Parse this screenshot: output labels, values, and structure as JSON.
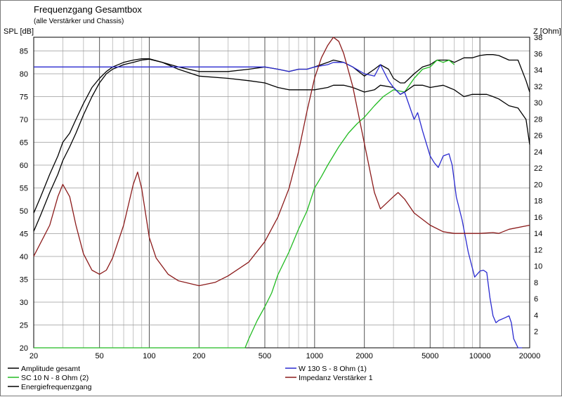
{
  "chart_data": {
    "type": "line",
    "title": "Frequenzgang Gesamtbox",
    "subtitle": "(alle Verstärker und Chassis)",
    "ylabel": "SPL [dB]",
    "y2label": "Z [Ohm]",
    "x_scale": "log",
    "xlim": [
      20,
      20000
    ],
    "ylim": [
      20,
      88
    ],
    "y2lim": [
      0,
      38
    ],
    "x_ticks": [
      20,
      50,
      100,
      200,
      500,
      1000,
      2000,
      5000,
      10000,
      20000
    ],
    "y_ticks": [
      20,
      25,
      30,
      35,
      40,
      45,
      50,
      55,
      60,
      65,
      70,
      75,
      80,
      85
    ],
    "y2_ticks": [
      2,
      4,
      6,
      8,
      10,
      12,
      14,
      16,
      18,
      20,
      22,
      24,
      26,
      28,
      30,
      32,
      34,
      36,
      38
    ],
    "grid": true,
    "legend_position": "bottom",
    "series": [
      {
        "name": "Amplitude gesamt",
        "axis": "left",
        "color": "#000000",
        "x": [
          20,
          22,
          25,
          28,
          30,
          33,
          36,
          40,
          45,
          50,
          55,
          60,
          70,
          80,
          90,
          100,
          120,
          150,
          200,
          300,
          400,
          500,
          600,
          700,
          800,
          900,
          1000,
          1200,
          1300,
          1500,
          1700,
          2000,
          2300,
          2500,
          2800,
          3000,
          3300,
          3500,
          4000,
          4500,
          5000,
          5500,
          6000,
          6500,
          7000,
          8000,
          9000,
          10000,
          11000,
          12000,
          13000,
          15000,
          17000,
          19000,
          20000
        ],
        "y": [
          49.5,
          53,
          58,
          62,
          65,
          67,
          70,
          73.5,
          77,
          79,
          80.5,
          81.5,
          82.5,
          83,
          83.3,
          83.3,
          82.5,
          81.5,
          80.5,
          80.5,
          81,
          81.5,
          81,
          80.5,
          81,
          81,
          81.5,
          82.5,
          83,
          82.5,
          81.5,
          79.5,
          81,
          82,
          81,
          79,
          78,
          78,
          80,
          81.5,
          82,
          83,
          83,
          83,
          82.5,
          83.5,
          83.5,
          84,
          84.2,
          84.2,
          84,
          83,
          83,
          78.5,
          76
        ]
      },
      {
        "name": "SC 10 N - 8 Ohm (2)",
        "axis": "left",
        "color": "#22bb22",
        "x": [
          20,
          100,
          300,
          380,
          400,
          450,
          500,
          550,
          600,
          700,
          800,
          900,
          1000,
          1100,
          1200,
          1400,
          1600,
          1800,
          2000,
          2300,
          2600,
          3000,
          3500,
          4000,
          4500,
          5000,
          5500,
          6000,
          6500,
          7000
        ],
        "y": [
          20,
          20,
          20,
          20,
          22,
          26,
          29,
          32,
          36,
          41,
          46,
          50,
          55,
          57.5,
          60,
          64,
          67,
          69,
          70.5,
          73,
          75,
          76.5,
          76,
          79,
          81,
          81.5,
          83,
          82.5,
          83,
          82
        ]
      },
      {
        "name": "Energiefrequenzgang",
        "axis": "left",
        "color": "#000000",
        "x": [
          20,
          22,
          25,
          28,
          30,
          33,
          36,
          40,
          45,
          50,
          55,
          60,
          70,
          80,
          90,
          100,
          120,
          150,
          200,
          300,
          400,
          500,
          600,
          700,
          800,
          1000,
          1200,
          1300,
          1500,
          1700,
          2000,
          2300,
          2500,
          3000,
          3300,
          3500,
          4000,
          4500,
          5000,
          6000,
          7000,
          8000,
          9000,
          10000,
          11000,
          12000,
          13000,
          15000,
          17000,
          19000,
          20000
        ],
        "y": [
          45.5,
          49,
          54,
          58,
          61,
          64,
          67,
          71,
          75,
          78,
          80,
          81,
          82,
          82.5,
          83,
          83.2,
          82.5,
          81,
          79.5,
          79,
          78.5,
          78,
          77,
          76.5,
          76.5,
          76.5,
          77,
          77.5,
          77.5,
          77,
          76,
          76.5,
          77.5,
          77,
          75.5,
          76,
          77.5,
          77.5,
          77,
          77.5,
          76.5,
          75,
          75.5,
          75.5,
          75.5,
          75,
          74.5,
          73,
          72.5,
          70,
          64.5
        ]
      },
      {
        "name": "W 130 S - 8 Ohm (1)",
        "axis": "left",
        "color": "#2a2ad0",
        "x": [
          20,
          100,
          300,
          500,
          600,
          700,
          800,
          900,
          1000,
          1200,
          1300,
          1500,
          1700,
          2000,
          2300,
          2500,
          2800,
          3000,
          3300,
          3500,
          4000,
          4200,
          4500,
          5000,
          5300,
          5600,
          6000,
          6500,
          6800,
          7200,
          7800,
          8500,
          9300,
          10000,
          10500,
          11000,
          11500,
          12000,
          12500,
          13000,
          14000,
          15000,
          15500,
          16000,
          17000,
          18000
        ],
        "y": [
          81.5,
          81.5,
          81.5,
          81.5,
          81,
          80.5,
          81,
          81,
          81.5,
          82,
          82.5,
          82.5,
          81.5,
          80,
          79.5,
          82,
          78.5,
          77,
          75.5,
          76,
          70,
          71.5,
          67.5,
          62,
          60.5,
          59.5,
          62,
          62.5,
          60,
          53,
          48,
          41,
          35.5,
          36.8,
          37,
          36.5,
          31,
          27,
          25.5,
          26,
          26.5,
          27,
          25.5,
          22,
          20,
          20
        ]
      },
      {
        "name": "Impedanz Verstärker 1",
        "axis": "right",
        "color": "#8b1a1a",
        "x": [
          20,
          25,
          28,
          30,
          33,
          36,
          40,
          45,
          50,
          55,
          60,
          70,
          80,
          85,
          90,
          100,
          110,
          130,
          150,
          200,
          250,
          300,
          400,
          500,
          600,
          700,
          800,
          900,
          1000,
          1100,
          1200,
          1300,
          1400,
          1500,
          1700,
          2000,
          2300,
          2500,
          3000,
          3200,
          3500,
          4000,
          5000,
          6000,
          7000,
          8000,
          10000,
          12000,
          13000,
          15000,
          20000
        ],
        "y": [
          11.2,
          15,
          18.5,
          20,
          18.5,
          15,
          11.5,
          9.5,
          9,
          9.5,
          11,
          15,
          20,
          21.5,
          19.5,
          13.5,
          11,
          9,
          8.2,
          7.6,
          8,
          8.8,
          10.5,
          13,
          16,
          19.5,
          24,
          29,
          33,
          35.5,
          37,
          38,
          37.5,
          36,
          32,
          25,
          19,
          17,
          18.5,
          19,
          18.2,
          16.5,
          15,
          14.2,
          14,
          14,
          14,
          14.1,
          14,
          14.5,
          15
        ]
      }
    ]
  }
}
